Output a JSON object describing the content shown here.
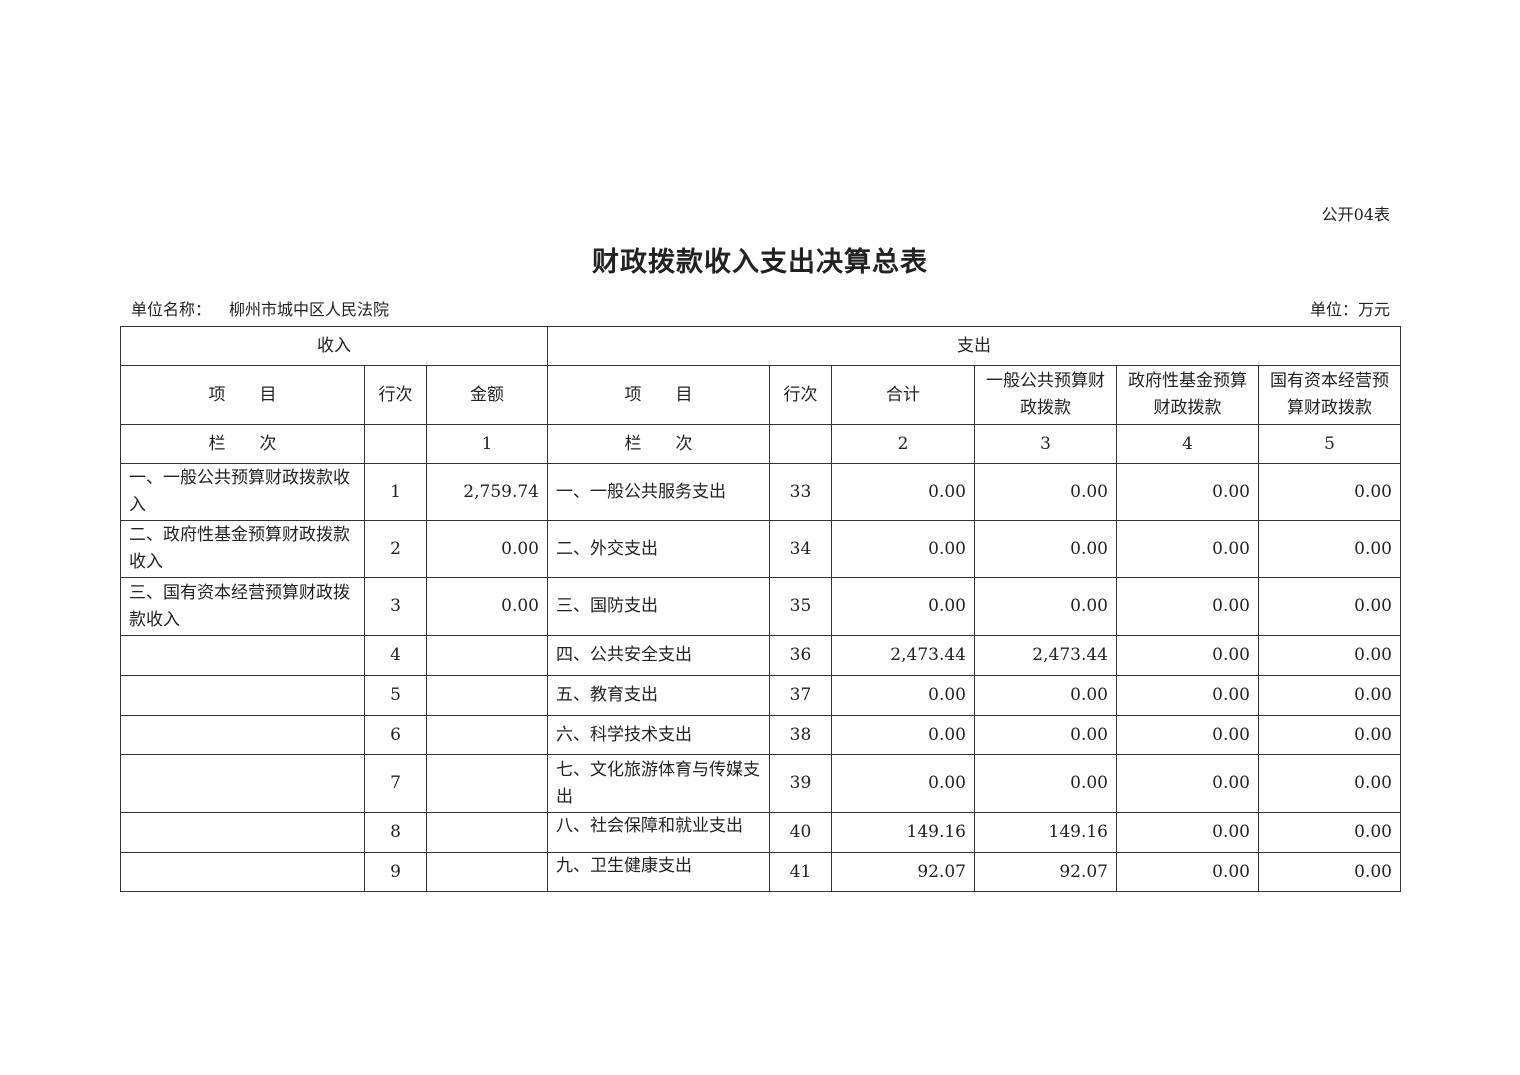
{
  "form_no": "公开04表",
  "title": "财政拨款收入支出决算总表",
  "unit_name_label": "单位名称：",
  "unit_name": "柳州市城中区人民法院",
  "unit": "单位：万元",
  "header": {
    "income": "收入",
    "expense": "支出",
    "item": "项　　目",
    "row_no": "行次",
    "amount": "金额",
    "item2": "项　　目",
    "row_no2": "行次",
    "total": "合计",
    "general": "一般公共预算财政拨款",
    "gov_fund": "政府性基金预算财政拨款",
    "state_capital": "国有资本经营预算财政拨款",
    "col_label": "栏　　次",
    "col_label2": "栏　　次",
    "col1": "1",
    "col2": "2",
    "col3": "3",
    "col4": "4",
    "col5": "5"
  },
  "rows": [
    {
      "in_item": "一、一般公共预算财政拨款收入",
      "in_no": "1",
      "in_amt": "2,759.74",
      "ex_item": "一、一般公共服务支出",
      "ex_no": "33",
      "total": "0.00",
      "general": "0.00",
      "gov_fund": "0.00",
      "state_capital": "0.00"
    },
    {
      "in_item": "二、政府性基金预算财政拨款收入",
      "in_no": "2",
      "in_amt": "0.00",
      "ex_item": "二、外交支出",
      "ex_no": "34",
      "total": "0.00",
      "general": "0.00",
      "gov_fund": "0.00",
      "state_capital": "0.00"
    },
    {
      "in_item": "三、国有资本经营预算财政拨款收入",
      "in_no": "3",
      "in_amt": "0.00",
      "ex_item": "三、国防支出",
      "ex_no": "35",
      "total": "0.00",
      "general": "0.00",
      "gov_fund": "0.00",
      "state_capital": "0.00"
    },
    {
      "in_item": "",
      "in_no": "4",
      "in_amt": "",
      "ex_item": "四、公共安全支出",
      "ex_no": "36",
      "total": "2,473.44",
      "general": "2,473.44",
      "gov_fund": "0.00",
      "state_capital": "0.00"
    },
    {
      "in_item": "",
      "in_no": "5",
      "in_amt": "",
      "ex_item": "五、教育支出",
      "ex_no": "37",
      "total": "0.00",
      "general": "0.00",
      "gov_fund": "0.00",
      "state_capital": "0.00"
    },
    {
      "in_item": "",
      "in_no": "6",
      "in_amt": "",
      "ex_item": "六、科学技术支出",
      "ex_no": "38",
      "total": "0.00",
      "general": "0.00",
      "gov_fund": "0.00",
      "state_capital": "0.00"
    },
    {
      "in_item": "",
      "in_no": "7",
      "in_amt": "",
      "ex_item": "七、文化旅游体育与传媒支出",
      "ex_no": "39",
      "total": "0.00",
      "general": "0.00",
      "gov_fund": "0.00",
      "state_capital": "0.00"
    },
    {
      "in_item": "",
      "in_no": "8",
      "in_amt": "",
      "ex_item": "八、社会保障和就业支出",
      "ex_no": "40",
      "total": "149.16",
      "general": "149.16",
      "gov_fund": "0.00",
      "state_capital": "0.00"
    },
    {
      "in_item": "",
      "in_no": "9",
      "in_amt": "",
      "ex_item": "九、卫生健康支出",
      "ex_no": "41",
      "total": "92.07",
      "general": "92.07",
      "gov_fund": "0.00",
      "state_capital": "0.00"
    }
  ]
}
